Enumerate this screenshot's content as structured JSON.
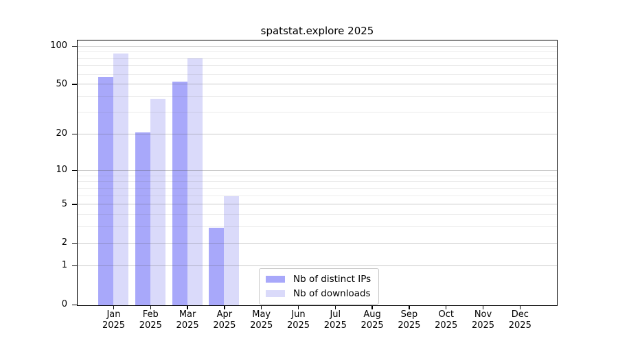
{
  "chart_data": {
    "type": "bar",
    "title": "spatstat.explore 2025",
    "categories": [
      "Jan",
      "Feb",
      "Mar",
      "Apr",
      "May",
      "Jun",
      "Jul",
      "Aug",
      "Sep",
      "Oct",
      "Nov",
      "Dec"
    ],
    "x_year_label": "2025",
    "series": [
      {
        "name": "Nb of distinct IPs",
        "color": "#a8a8fa",
        "values": [
          58,
          21,
          53,
          3,
          null,
          null,
          null,
          null,
          null,
          null,
          null,
          null
        ]
      },
      {
        "name": "Nb of downloads",
        "color": "#dadafa",
        "values": [
          89,
          39,
          81,
          6,
          null,
          null,
          null,
          null,
          null,
          null,
          null,
          null
        ]
      }
    ],
    "yscale": "log10(value+1)",
    "ylim": [
      0,
      105
    ],
    "yticks": [
      0,
      1,
      2,
      5,
      10,
      20,
      50,
      100
    ],
    "minor_gridlines": [
      3,
      4,
      6,
      7,
      8,
      9,
      30,
      40,
      60,
      70,
      80,
      90
    ],
    "grid": true,
    "legend_position": "bottom-center"
  },
  "colors": {
    "bar_distinct_ips": "#a8a8fa",
    "bar_downloads": "#dadafa",
    "major_gridline": "#c9c9c9",
    "minor_gridline": "#ececec",
    "axis_frame": "#000000",
    "legend_border": "#c8c8c8",
    "background": "#ffffff"
  }
}
